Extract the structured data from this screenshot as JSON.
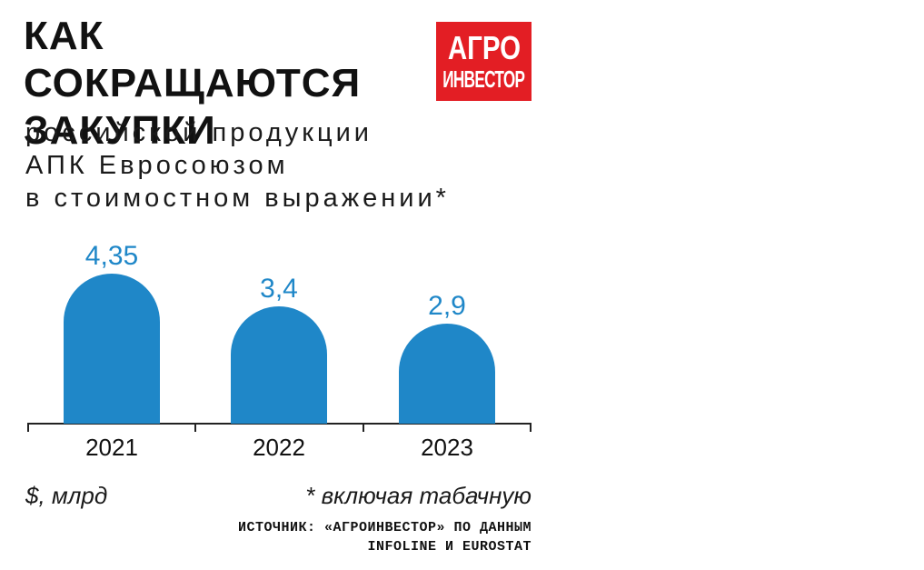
{
  "header": {
    "title_line1": "КАК СОКРАЩАЮТСЯ",
    "title_line2": "ЗАКУПКИ",
    "subtitle_line1": "российской продукции",
    "subtitle_line2": "АПК Евросоюзом",
    "subtitle_line3": "в стоимостном выражении*"
  },
  "logo": {
    "line1": "АГРО",
    "line2": "ИНВЕСТОР",
    "color": "#e31e24"
  },
  "footer": {
    "unit": "$, млрд",
    "footnote": "* включая табачную",
    "source_line1": "ИСТОЧНИК: «АГРОИНВЕСТОР» ПО ДАННЫМ",
    "source_line2": "INFOLINE И EUROSTAT"
  },
  "colors": {
    "bar": "#1f87c8",
    "label": "#1f87c8",
    "axis": "#222222"
  },
  "chart_data": {
    "type": "bar",
    "categories": [
      "2021",
      "2022",
      "2023"
    ],
    "values": [
      4.35,
      3.4,
      2.9
    ],
    "value_labels": [
      "4,35",
      "3,4",
      "2,9"
    ],
    "title": "",
    "xlabel": "",
    "ylabel": "$, млрд",
    "grid": false,
    "legend": "none"
  }
}
